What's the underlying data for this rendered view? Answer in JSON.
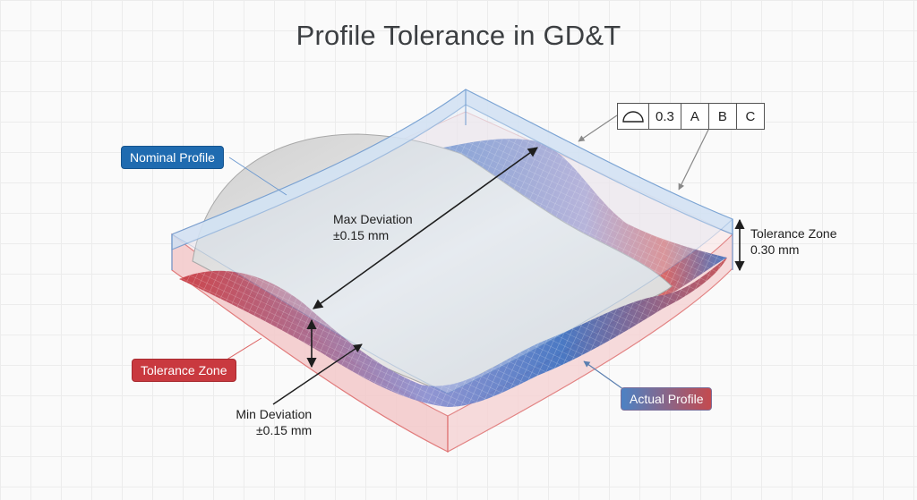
{
  "title": "Profile Tolerance in GD&T",
  "labels": {
    "nominal_profile": "Nominal Profile",
    "tolerance_zone": "Tolerance Zone",
    "actual_profile": "Actual Profile",
    "max_deviation_line1": "Max Deviation",
    "max_deviation_line2": "±0.15 mm",
    "min_deviation_line1": "Min Deviation",
    "min_deviation_line2": "±0.15 mm",
    "tolerance_zone_dim_line1": "Tolerance Zone",
    "tolerance_zone_dim_line2": "0.30 mm"
  },
  "feature_control_frame": {
    "symbol": "profile-of-surface-icon",
    "tolerance": "0.3",
    "datums": [
      "A",
      "B",
      "C"
    ]
  },
  "colors": {
    "nominal_tag": "#1f6bb0",
    "tolerance_tag": "#c9393f",
    "zone_top": "#bcd4ef",
    "zone_bottom": "#f2c4c6",
    "mesh_high": "#c9393f",
    "mesh_low": "#3b6fc0",
    "surface": "#d9d9d9"
  }
}
